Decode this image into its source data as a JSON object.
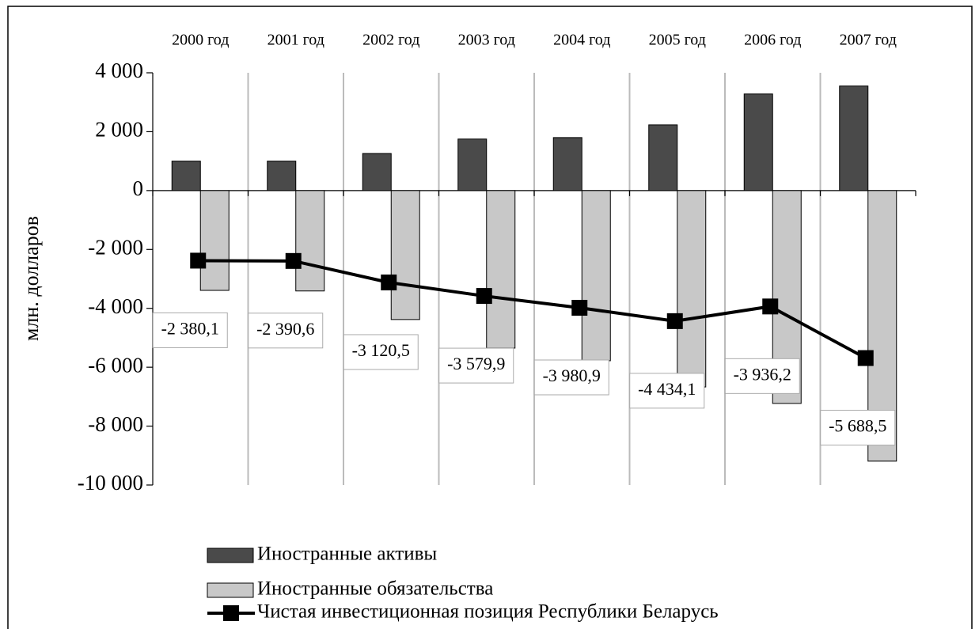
{
  "chart_data": {
    "type": "bar",
    "categories": [
      "2000 год",
      "2001 год",
      "2002 год",
      "2003 год",
      "2004 год",
      "2005 год",
      "2006 год",
      "2007 год"
    ],
    "y_label": "млн. долларов",
    "series": [
      {
        "name": "Иностранные активы",
        "type": "bar",
        "color": "#4a4a4a",
        "values": [
          1000,
          1000,
          1260,
          1750,
          1800,
          2230,
          3280,
          3550
        ]
      },
      {
        "name": "Иностранные обязательства",
        "type": "bar",
        "color": "#c8c8c8",
        "values": [
          -3390,
          -3410,
          -4380,
          -5350,
          -5780,
          -6670,
          -7230,
          -9190
        ]
      },
      {
        "name": "Чистая инвестиционная позиция Республики Беларусь",
        "type": "line",
        "color": "#000000",
        "values": [
          -2380.1,
          -2390.6,
          -3120.5,
          -3579.9,
          -3980.9,
          -4434.1,
          -3936.2,
          -5688.5
        ],
        "value_labels": [
          "-2 380,1",
          "-2 390,6",
          "-3 120,5",
          "-3 579,9",
          "-3 980,9",
          "-4 434,1",
          "-3 936,2",
          "-5 688,5"
        ]
      }
    ],
    "ylim": [
      -10000,
      4000
    ],
    "yticks": [
      {
        "value": 4000,
        "label": "4 000"
      },
      {
        "value": 2000,
        "label": "2 000"
      },
      0,
      {
        "value": -2000,
        "label": "-2 000"
      },
      {
        "value": -4000,
        "label": "-4 000"
      },
      {
        "value": -6000,
        "label": "-6 000"
      },
      {
        "value": -8000,
        "label": "-8 000"
      },
      {
        "value": -10000,
        "label": "-10 000"
      }
    ],
    "grid": true
  }
}
